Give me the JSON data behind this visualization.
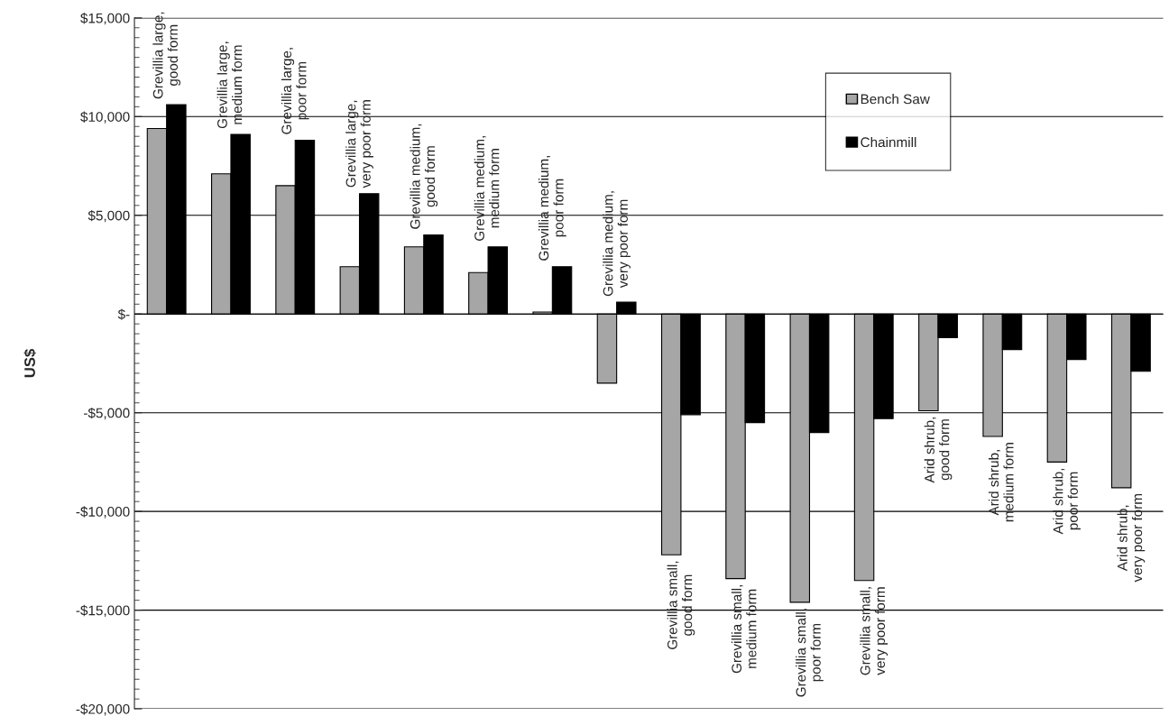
{
  "chart_data": {
    "type": "bar",
    "ylabel": "US$",
    "categories": [
      "Grevillia large,\ngood form",
      "Grevillia large,\nmedium form",
      "Grevillia large,\npoor form",
      "Grevillia large,\nvery poor form",
      "Grevillia medium,\ngood form",
      "Grevillia medium,\nmedium form",
      "Grevillia medium,\npoor form",
      "Grevillia medium,\nvery poor form",
      "Grevillia small,\ngood form",
      "Grevillia small,\nmedium form",
      "Grevillia small,\npoor form",
      "Grevillia small,\nvery poor form",
      "Arid shrub,\ngood form",
      "Arid shrub,\nmedium form",
      "Arid shrub,\npoor form",
      "Arid shrub,\nvery poor form"
    ],
    "series": [
      {
        "name": "Bench Saw",
        "color": "#a6a6a6",
        "values": [
          9400,
          7100,
          6500,
          2400,
          3400,
          2100,
          100,
          -3500,
          -12200,
          -13400,
          -14600,
          -13500,
          -4900,
          -6200,
          -7500,
          -8800
        ]
      },
      {
        "name": "Chainmill",
        "color": "#000000",
        "values": [
          10600,
          9100,
          8800,
          6100,
          4000,
          3400,
          2400,
          600,
          -5100,
          -5500,
          -6000,
          -5300,
          -1200,
          -1800,
          -2300,
          -2900
        ]
      }
    ],
    "ylim": [
      -20000,
      15000
    ],
    "yticks": [
      {
        "value": -20000,
        "label": "-$20,000"
      },
      {
        "value": -15000,
        "label": "-$15,000"
      },
      {
        "value": -10000,
        "label": "-$10,000"
      },
      {
        "value": -5000,
        "label": "-$5,000"
      },
      {
        "value": 0,
        "label": "$-"
      },
      {
        "value": 5000,
        "label": "$5,000"
      },
      {
        "value": 10000,
        "label": "$10,000"
      },
      {
        "value": 15000,
        "label": "$15,000"
      }
    ],
    "grid": "y",
    "legend": "top right"
  }
}
